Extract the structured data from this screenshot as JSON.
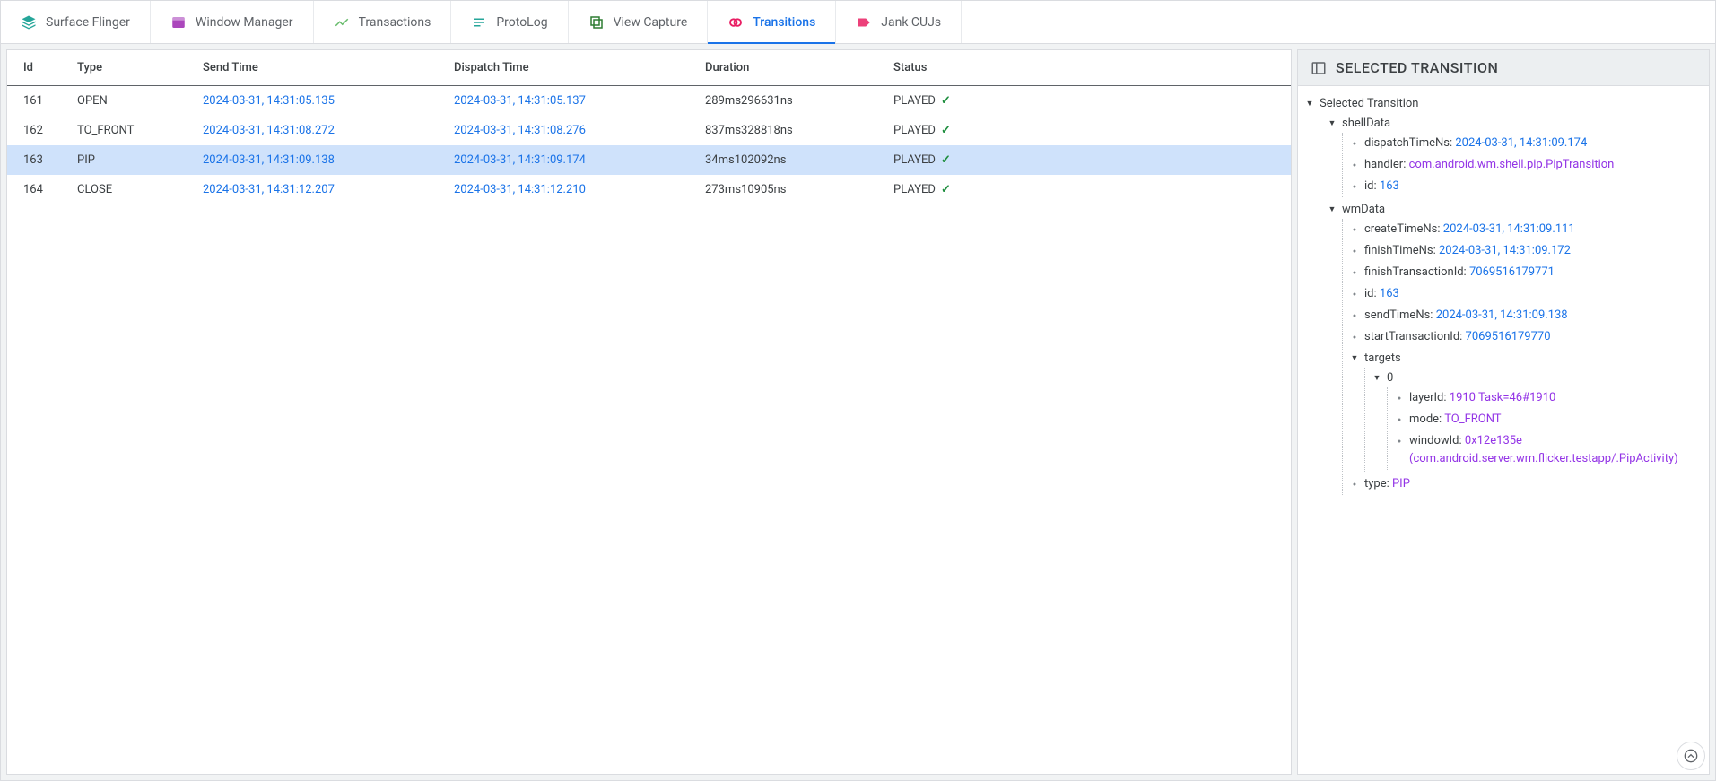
{
  "tabs": [
    {
      "label": "Surface Flinger",
      "iconColor": "#26a69a",
      "active": false,
      "icon": "layers"
    },
    {
      "label": "Window Manager",
      "iconColor": "#ab47bc",
      "active": false,
      "icon": "window"
    },
    {
      "label": "Transactions",
      "iconColor": "#66bb6a",
      "active": false,
      "icon": "trend"
    },
    {
      "label": "ProtoLog",
      "iconColor": "#26a69a",
      "active": false,
      "icon": "list"
    },
    {
      "label": "View Capture",
      "iconColor": "#2e7d32",
      "active": false,
      "icon": "viewcapture"
    },
    {
      "label": "Transitions",
      "iconColor": "#e91e63",
      "active": true,
      "icon": "link"
    },
    {
      "label": "Jank CUJs",
      "iconColor": "#ec407a",
      "active": false,
      "icon": "tag"
    }
  ],
  "table": {
    "columns": [
      "Id",
      "Type",
      "Send Time",
      "Dispatch Time",
      "Duration",
      "Status"
    ],
    "colWidths": [
      "70px",
      "140px",
      "280px",
      "280px",
      "210px",
      "auto"
    ],
    "rows": [
      {
        "id": "161",
        "type": "OPEN",
        "send": "2024-03-31, 14:31:05.135",
        "dispatch": "2024-03-31, 14:31:05.137",
        "duration": "289ms296631ns",
        "status": "PLAYED",
        "selected": false
      },
      {
        "id": "162",
        "type": "TO_FRONT",
        "send": "2024-03-31, 14:31:08.272",
        "dispatch": "2024-03-31, 14:31:08.276",
        "duration": "837ms328818ns",
        "status": "PLAYED",
        "selected": false
      },
      {
        "id": "163",
        "type": "PIP",
        "send": "2024-03-31, 14:31:09.138",
        "dispatch": "2024-03-31, 14:31:09.174",
        "duration": "34ms102092ns",
        "status": "PLAYED",
        "selected": true
      },
      {
        "id": "164",
        "type": "CLOSE",
        "send": "2024-03-31, 14:31:12.207",
        "dispatch": "2024-03-31, 14:31:12.210",
        "duration": "273ms10905ns",
        "status": "PLAYED",
        "selected": false
      }
    ]
  },
  "rightPanel": {
    "title": "SELECTED TRANSITION",
    "rootLabel": "Selected Transition",
    "shellData": {
      "label": "shellData",
      "dispatchTimeNs": {
        "key": "dispatchTimeNs:",
        "value": "2024-03-31, 14:31:09.174",
        "cls": "val-link"
      },
      "handler": {
        "key": "handler:",
        "value": "com.android.wm.shell.pip.PipTransition",
        "cls": "val-purple"
      },
      "id": {
        "key": "id:",
        "value": "163",
        "cls": "val-link"
      }
    },
    "wmData": {
      "label": "wmData",
      "createTimeNs": {
        "key": "createTimeNs:",
        "value": "2024-03-31, 14:31:09.111",
        "cls": "val-link"
      },
      "finishTimeNs": {
        "key": "finishTimeNs:",
        "value": "2024-03-31, 14:31:09.172",
        "cls": "val-link"
      },
      "finishTransactionId": {
        "key": "finishTransactionId:",
        "value": "7069516179771",
        "cls": "val-link"
      },
      "id": {
        "key": "id:",
        "value": "163",
        "cls": "val-link"
      },
      "sendTimeNs": {
        "key": "sendTimeNs:",
        "value": "2024-03-31, 14:31:09.138",
        "cls": "val-link"
      },
      "startTransactionId": {
        "key": "startTransactionId:",
        "value": "7069516179770",
        "cls": "val-link"
      },
      "targets": {
        "label": "targets",
        "item0": {
          "label": "0",
          "layerId": {
            "key": "layerId:",
            "value": "1910 Task=46#1910",
            "cls": "val-purple"
          },
          "mode": {
            "key": "mode:",
            "value": "TO_FRONT",
            "cls": "val-purple"
          },
          "windowId": {
            "key": "windowId:",
            "value": "0x12e135e (com.android.server.wm.flicker.testapp/.PipActivity)",
            "cls": "val-purple"
          }
        }
      },
      "type": {
        "key": "type:",
        "value": "PIP",
        "cls": "val-purple"
      }
    }
  },
  "colors": {
    "link": "#1a73e8",
    "purple": "#9334e6",
    "checkGreen": "#1e8e3e",
    "selectedRow": "#cfe2fb"
  }
}
